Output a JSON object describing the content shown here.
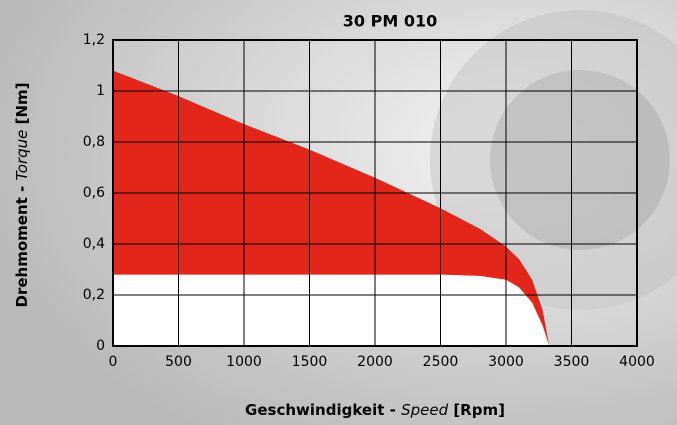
{
  "chart_data": {
    "type": "area",
    "title": "30 PM 010",
    "xlabel": [
      "Geschwindigkeit - ",
      "Speed",
      " [Rpm]"
    ],
    "ylabel": [
      "Drehmoment - ",
      "Torque",
      " [Nm]"
    ],
    "x": [
      0,
      500,
      1000,
      1500,
      2000,
      2500,
      2800,
      3000,
      3100,
      3200,
      3280,
      3330
    ],
    "series": [
      {
        "color": "#e2261c",
        "values": [
          1.08,
          0.98,
          0.87,
          0.77,
          0.66,
          0.54,
          0.46,
          0.39,
          0.34,
          0.26,
          0.14,
          0
        ]
      },
      {
        "color": "#ffffff",
        "values": [
          0.28,
          0.28,
          0.28,
          0.28,
          0.28,
          0.28,
          0.275,
          0.26,
          0.23,
          0.17,
          0.08,
          0
        ]
      }
    ],
    "xlim": [
      0,
      4000
    ],
    "xticks": [
      0,
      500,
      1000,
      1500,
      2000,
      2500,
      3000,
      3500,
      4000
    ],
    "ylim": [
      0,
      1.2
    ],
    "yticks": [
      0,
      {
        "value": 0.2,
        "label": "0,2"
      },
      {
        "value": 0.4,
        "label": "0,4"
      },
      {
        "value": 0.6,
        "label": "0,6"
      },
      {
        "value": 0.8,
        "label": "0,8"
      },
      1,
      {
        "value": 1.2,
        "label": "1,2"
      }
    ],
    "grid": true
  }
}
